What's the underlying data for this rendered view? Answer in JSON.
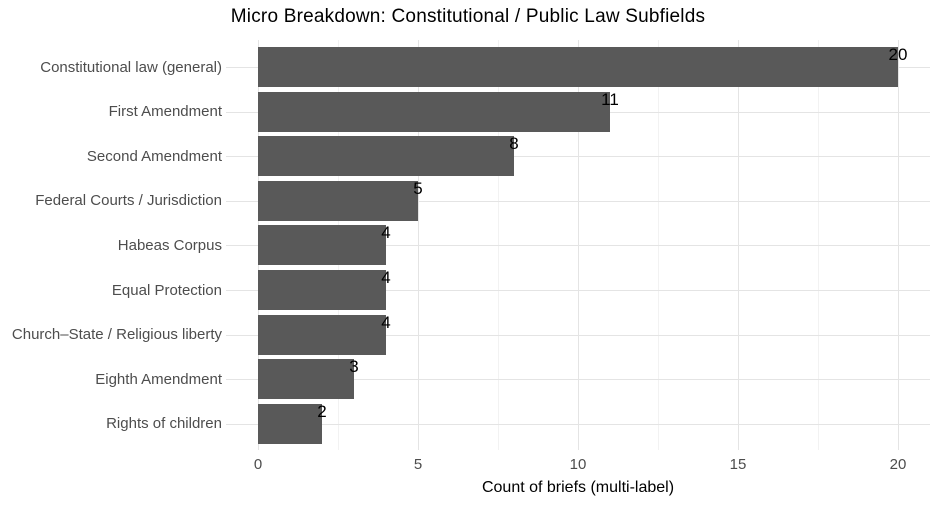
{
  "title": "Micro Breakdown: Constitutional / Public Law Subfields",
  "chart_data": {
    "type": "bar",
    "orientation": "horizontal",
    "title": "Micro Breakdown: Constitutional / Public Law Subfields",
    "categories": [
      "Constitutional law (general)",
      "First Amendment",
      "Second Amendment",
      "Federal Courts / Jurisdiction",
      "Habeas Corpus",
      "Equal Protection",
      "Church–State / Religious liberty",
      "Eighth Amendment",
      "Rights of children"
    ],
    "values": [
      20,
      11,
      8,
      5,
      4,
      4,
      4,
      3,
      2
    ],
    "bar_labels": [
      "20",
      "11",
      "8",
      "5",
      "4",
      "4",
      "4",
      "3",
      "2"
    ],
    "xlabel": "Count of briefs (multi-label)",
    "ylabel": "",
    "xlim": [
      -1,
      21
    ],
    "x_major_ticks": [
      0,
      5,
      10,
      15,
      20
    ],
    "x_minor_ticks": [
      2.5,
      7.5,
      12.5,
      17.5
    ],
    "grid": true,
    "legend_position": "none",
    "colors": {
      "bar_fill": "#595959",
      "value_label": "#000000",
      "axis_text": "#4d4d4d",
      "axis_title": "#000000",
      "plot_title": "#000000",
      "grid_major": "#e4e4e4",
      "grid_minor": "#f2f2f2",
      "background": "#ffffff"
    }
  }
}
